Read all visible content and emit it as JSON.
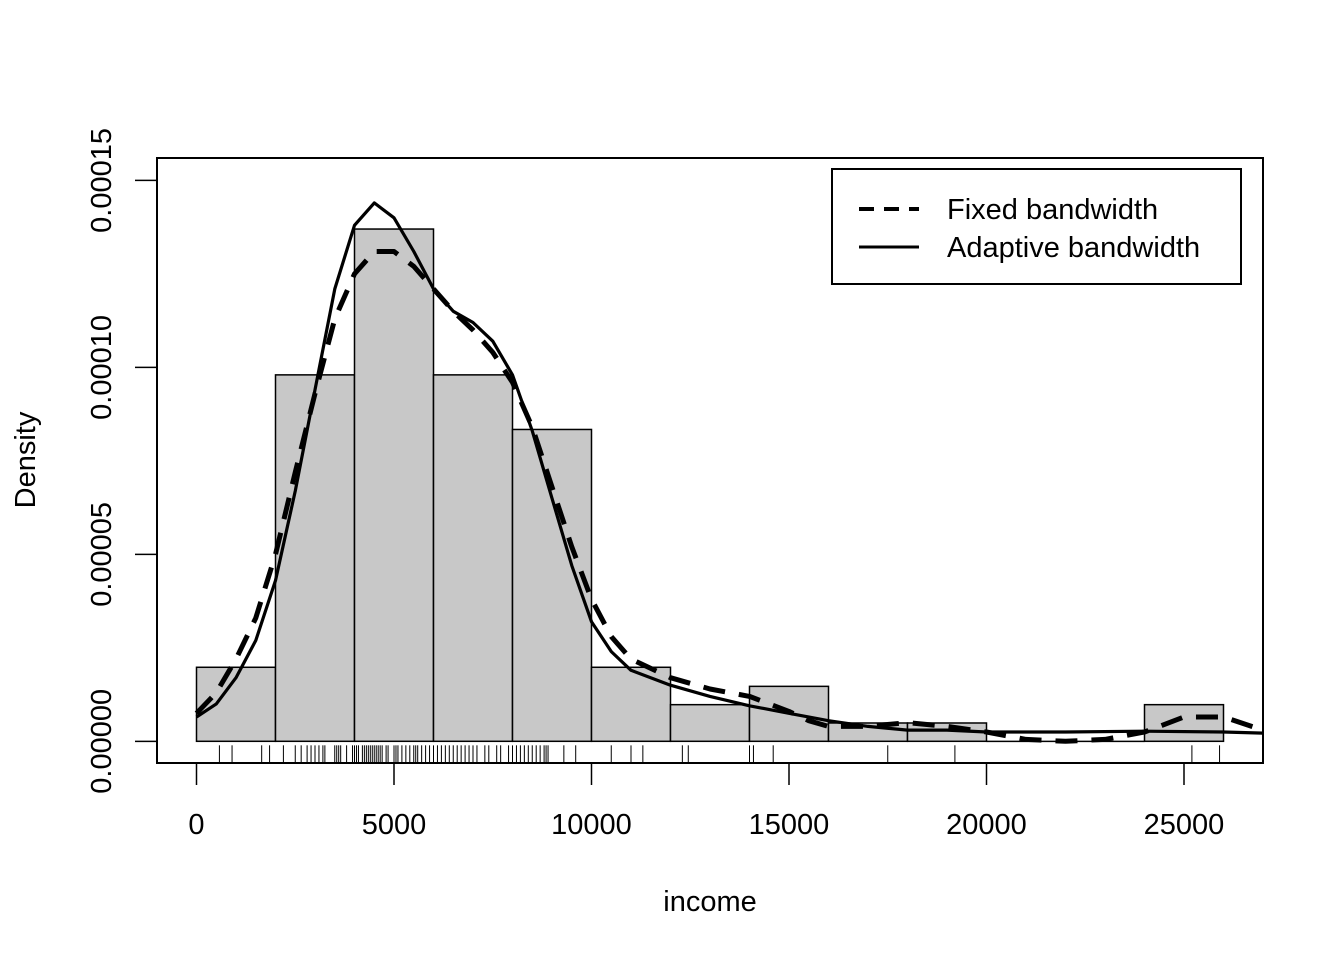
{
  "chart_data": {
    "type": "histogram",
    "xlabel": "income",
    "ylabel": "Density",
    "xlim": [
      -1000,
      27000
    ],
    "ylim": [
      -5.8e-06,
      0.000156
    ],
    "x_ticks": [
      0,
      5000,
      10000,
      15000,
      20000,
      25000
    ],
    "x_tick_labels": [
      "0",
      "5000",
      "10000",
      "15000",
      "20000",
      "25000"
    ],
    "y_ticks": [
      0,
      5e-05,
      0.0001,
      0.00015
    ],
    "y_tick_labels": [
      "0.00000",
      "0.00005",
      "0.00010",
      "0.00015"
    ],
    "bar_color": "#c8c8c8",
    "bins": [
      {
        "x0": 0,
        "x1": 2000,
        "density": 1.98e-05
      },
      {
        "x0": 2000,
        "x1": 4000,
        "density": 9.8e-05
      },
      {
        "x0": 4000,
        "x1": 6000,
        "density": 0.000137
      },
      {
        "x0": 6000,
        "x1": 8000,
        "density": 9.8e-05
      },
      {
        "x0": 8000,
        "x1": 10000,
        "density": 8.34e-05
      },
      {
        "x0": 10000,
        "x1": 12000,
        "density": 1.98e-05
      },
      {
        "x0": 12000,
        "x1": 14000,
        "density": 9.8e-06
      },
      {
        "x0": 14000,
        "x1": 16000,
        "density": 1.47e-05
      },
      {
        "x0": 16000,
        "x1": 18000,
        "density": 4.9e-06
      },
      {
        "x0": 18000,
        "x1": 20000,
        "density": 4.9e-06
      },
      {
        "x0": 20000,
        "x1": 22000,
        "density": 0
      },
      {
        "x0": 22000,
        "x1": 24000,
        "density": 0
      },
      {
        "x0": 24000,
        "x1": 26000,
        "density": 9.8e-06
      }
    ],
    "rug": [
      580,
      900,
      1650,
      1850,
      2200,
      2500,
      2650,
      2800,
      2900,
      3000,
      3100,
      3200,
      3250,
      3500,
      3550,
      3600,
      3650,
      3800,
      3950,
      4000,
      4050,
      4100,
      4200,
      4250,
      4300,
      4350,
      4400,
      4450,
      4500,
      4550,
      4600,
      4650,
      4700,
      4800,
      4850,
      5000,
      5050,
      5100,
      5200,
      5300,
      5400,
      5500,
      5550,
      5600,
      5700,
      5800,
      5900,
      6000,
      6100,
      6200,
      6300,
      6400,
      6500,
      6600,
      6700,
      6800,
      6900,
      7000,
      7100,
      7300,
      7400,
      7600,
      7700,
      7900,
      8000,
      8100,
      8200,
      8300,
      8400,
      8500,
      8600,
      8700,
      8800,
      8850,
      8900,
      9300,
      9600,
      10500,
      11000,
      11300,
      12300,
      12450,
      14000,
      14100,
      14600,
      17500,
      19200,
      25200,
      25900
    ],
    "series": [
      {
        "name": "Fixed bandwidth",
        "style": "dashed",
        "points": [
          [
            0,
            7.5e-06
          ],
          [
            500,
            1.3e-05
          ],
          [
            1000,
            2.2e-05
          ],
          [
            1500,
            3.3e-05
          ],
          [
            2000,
            5e-05
          ],
          [
            2500,
            7.2e-05
          ],
          [
            3000,
            9.3e-05
          ],
          [
            3500,
            0.000113
          ],
          [
            4000,
            0.000125
          ],
          [
            4500,
            0.000131
          ],
          [
            5000,
            0.000131
          ],
          [
            5500,
            0.000127
          ],
          [
            6000,
            0.000121
          ],
          [
            6500,
            0.000115
          ],
          [
            7000,
            0.00011
          ],
          [
            7500,
            0.000104
          ],
          [
            8000,
            9.6e-05
          ],
          [
            8500,
            8.4e-05
          ],
          [
            9000,
            6.8e-05
          ],
          [
            9500,
            5.2e-05
          ],
          [
            10000,
            3.8e-05
          ],
          [
            10500,
            2.8e-05
          ],
          [
            11000,
            2.2e-05
          ],
          [
            12000,
            1.7e-05
          ],
          [
            13000,
            1.4e-05
          ],
          [
            14000,
            1.2e-05
          ],
          [
            14500,
            1e-05
          ],
          [
            15000,
            8e-06
          ],
          [
            15500,
            5.5e-06
          ],
          [
            16000,
            4e-06
          ],
          [
            17000,
            4e-06
          ],
          [
            18000,
            5e-06
          ],
          [
            19000,
            4e-06
          ],
          [
            20000,
            2.5e-06
          ],
          [
            21000,
            5e-07
          ],
          [
            22000,
            0.0
          ],
          [
            23000,
            5e-07
          ],
          [
            24000,
            2.5e-06
          ],
          [
            25000,
            6.5e-06
          ],
          [
            26000,
            6.5e-06
          ],
          [
            27000,
            3e-06
          ]
        ]
      },
      {
        "name": "Adaptive bandwidth",
        "style": "solid",
        "points": [
          [
            0,
            6.5e-06
          ],
          [
            500,
            1e-05
          ],
          [
            1000,
            1.7e-05
          ],
          [
            1500,
            2.7e-05
          ],
          [
            2000,
            4.3e-05
          ],
          [
            2500,
            6.7e-05
          ],
          [
            3000,
            9.4e-05
          ],
          [
            3500,
            0.000121
          ],
          [
            4000,
            0.000138
          ],
          [
            4500,
            0.000144
          ],
          [
            5000,
            0.00014
          ],
          [
            5500,
            0.000131
          ],
          [
            6000,
            0.000121
          ],
          [
            6500,
            0.000115
          ],
          [
            7000,
            0.000112
          ],
          [
            7500,
            0.000107
          ],
          [
            8000,
            9.8e-05
          ],
          [
            8500,
            8.3e-05
          ],
          [
            9000,
            6.5e-05
          ],
          [
            9500,
            4.7e-05
          ],
          [
            10000,
            3.2e-05
          ],
          [
            10500,
            2.4e-05
          ],
          [
            11000,
            1.9e-05
          ],
          [
            12000,
            1.5e-05
          ],
          [
            13000,
            1.2e-05
          ],
          [
            14000,
            9.5e-06
          ],
          [
            15000,
            7.5e-06
          ],
          [
            16000,
            5.5e-06
          ],
          [
            17000,
            4e-06
          ],
          [
            18000,
            3e-06
          ],
          [
            19000,
            3e-06
          ],
          [
            20000,
            2.5e-06
          ],
          [
            22000,
            2.5e-06
          ],
          [
            24000,
            2.7e-06
          ],
          [
            26000,
            2.5e-06
          ],
          [
            27000,
            2.2e-06
          ]
        ]
      }
    ]
  }
}
